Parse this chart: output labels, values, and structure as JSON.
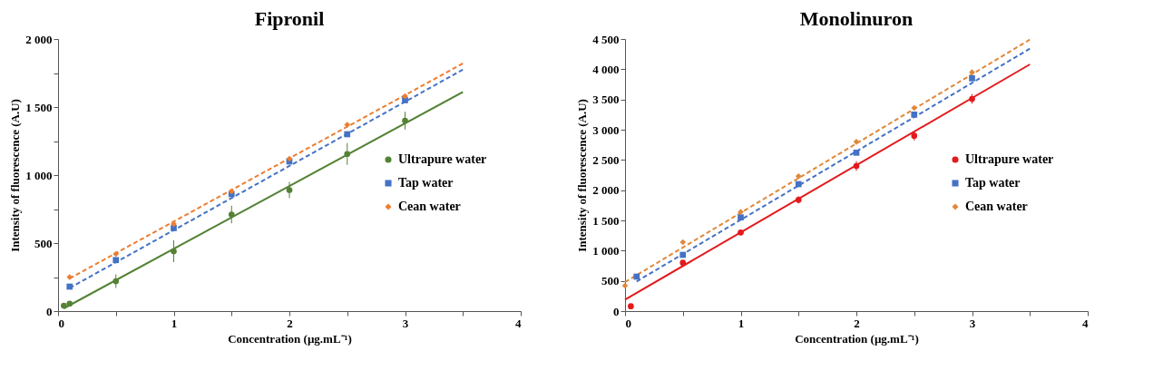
{
  "chart_data": [
    {
      "type": "scatter",
      "title": "Fipronil",
      "xlabel": "Concentration (µg.mL⁻¹)",
      "ylabel": "Intensity of fluorescence (A.U)",
      "xlim": [
        0,
        4
      ],
      "xticks": [
        0,
        {
          "value": 0.5,
          "label": null
        },
        1,
        {
          "value": 1.5,
          "label": null
        },
        2,
        {
          "value": 2.5,
          "label": null
        },
        3,
        {
          "value": 3.5,
          "label": null
        },
        4
      ],
      "ylim": [
        0,
        2000
      ],
      "yticks": [
        0,
        {
          "value": 250,
          "label": null
        },
        500,
        {
          "value": 750,
          "label": null
        },
        {
          "value": 1000,
          "label": "1 000"
        },
        {
          "value": 1250,
          "label": null
        },
        {
          "value": 1500,
          "label": "1 500"
        },
        {
          "value": 1750,
          "label": null
        },
        {
          "value": 2000,
          "label": "2 000"
        }
      ],
      "grid": false,
      "legend": "right",
      "series": [
        {
          "name": "Ultrapure water",
          "color": "#548235",
          "marker": "circle",
          "x": [
            0.05,
            0.1,
            0.5,
            1,
            1.5,
            2,
            2.5,
            3
          ],
          "values": [
            40,
            55,
            220,
            440,
            710,
            890,
            1155,
            1400
          ],
          "errors": [
            null,
            null,
            50,
            80,
            65,
            60,
            80,
            65
          ]
        },
        {
          "name": "Tap water",
          "color": "#4472c4",
          "marker": "square",
          "x": [
            0.1,
            0.5,
            1,
            1.5,
            2,
            2.5,
            3
          ],
          "values": [
            180,
            375,
            610,
            860,
            1100,
            1300,
            1550
          ]
        },
        {
          "name": "Cean water",
          "color": "#ed7d31",
          "marker": "diamond",
          "x": [
            0.1,
            0.5,
            1,
            1.5,
            2,
            2.5,
            3
          ],
          "values": [
            250,
            420,
            640,
            880,
            1120,
            1370,
            1580
          ]
        },
        {
          "type": "line",
          "color": "#548235",
          "line_style": "solid",
          "x": [
            0.05,
            3.5
          ],
          "values": [
            20,
            1610
          ]
        },
        {
          "type": "line",
          "color": "#4472c4",
          "line_style": "dashed",
          "x": [
            0.1,
            3.5
          ],
          "values": [
            170,
            1775
          ]
        },
        {
          "type": "line",
          "color": "#ed7d31",
          "line_style": "dashed",
          "x": [
            0.1,
            3.5
          ],
          "values": [
            240,
            1820
          ]
        }
      ]
    },
    {
      "type": "scatter",
      "title": "Monolinuron",
      "xlabel": "Concentration (µg.mL⁻¹)",
      "ylabel": "Intensity of fluorescence (A.U)",
      "xlim": [
        0,
        4
      ],
      "xticks": [
        0,
        {
          "value": 0.5,
          "label": null
        },
        1,
        {
          "value": 1.5,
          "label": null
        },
        2,
        {
          "value": 2.5,
          "label": null
        },
        3,
        {
          "value": 3.5,
          "label": null
        },
        4
      ],
      "ylim": [
        0,
        4500
      ],
      "yticks": [
        0,
        500,
        {
          "value": 1000,
          "label": "1 000"
        },
        {
          "value": 1500,
          "label": "1 500"
        },
        {
          "value": 2000,
          "label": "2 000"
        },
        {
          "value": 2500,
          "label": "2 500"
        },
        {
          "value": 3000,
          "label": "3 000"
        },
        {
          "value": 3500,
          "label": "3 500"
        },
        {
          "value": 4000,
          "label": "4 000"
        },
        {
          "value": 4500,
          "label": "4 500"
        }
      ],
      "grid": false,
      "legend": "right",
      "series": [
        {
          "name": "Ultrapure water",
          "color": "#e31a1c",
          "marker": "circle",
          "x": [
            0.05,
            0.5,
            1,
            1.5,
            2,
            2.5,
            3
          ],
          "values": [
            80,
            800,
            1300,
            1840,
            2400,
            2900,
            3510
          ],
          "errors": [
            null,
            null,
            null,
            60,
            80,
            80,
            80
          ]
        },
        {
          "name": "Tap water",
          "color": "#4472c4",
          "marker": "square",
          "x": [
            0.1,
            0.5,
            1,
            1.5,
            2,
            2.5,
            3
          ],
          "values": [
            570,
            930,
            1550,
            2100,
            2620,
            3250,
            3850
          ]
        },
        {
          "name": "Cean water",
          "color": "#e0883a",
          "marker": "diamond",
          "x": [
            0,
            0.5,
            1,
            1.5,
            2,
            2.5,
            3
          ],
          "values": [
            420,
            1140,
            1640,
            2230,
            2800,
            3360,
            3950
          ]
        },
        {
          "type": "line",
          "color": "#e31a1c",
          "line_style": "solid",
          "x": [
            0,
            3.5
          ],
          "values": [
            190,
            4080
          ]
        },
        {
          "type": "line",
          "color": "#4472c4",
          "line_style": "dashed",
          "x": [
            0.1,
            3.5
          ],
          "values": [
            490,
            4340
          ]
        },
        {
          "type": "line",
          "color": "#e0883a",
          "line_style": "dashed",
          "x": [
            0,
            3.5
          ],
          "values": [
            480,
            4490
          ]
        }
      ]
    }
  ]
}
